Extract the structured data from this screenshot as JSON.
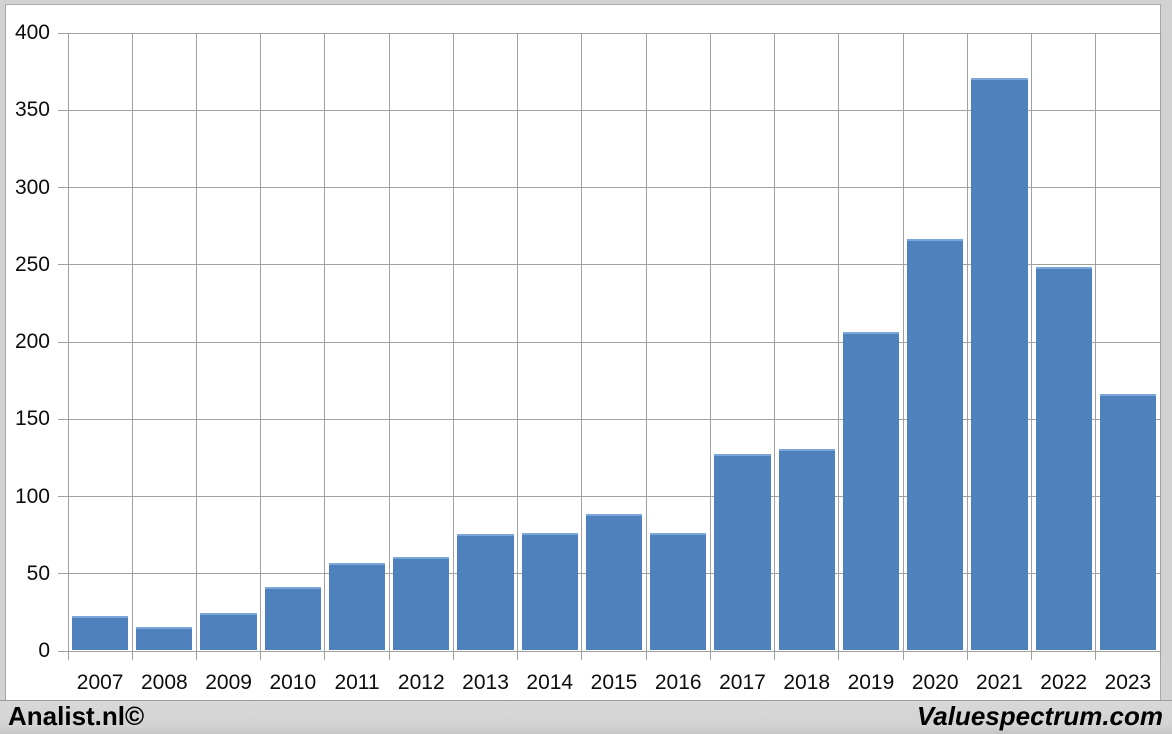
{
  "chart_data": {
    "type": "bar",
    "title": "",
    "xlabel": "",
    "ylabel": "",
    "categories": [
      "2007",
      "2008",
      "2009",
      "2010",
      "2011",
      "2012",
      "2013",
      "2014",
      "2015",
      "2016",
      "2017",
      "2018",
      "2019",
      "2020",
      "2021",
      "2022",
      "2023"
    ],
    "values": [
      22,
      15,
      24,
      41,
      56,
      60,
      75,
      76,
      88,
      76,
      127,
      130,
      206,
      266,
      370,
      248,
      166
    ],
    "ylim": [
      0,
      400
    ],
    "yticks": [
      0,
      50,
      100,
      150,
      200,
      250,
      300,
      350,
      400
    ],
    "grid": "major-horizontal-and-vertical",
    "legend_position": "none",
    "bar_color": "#4f81bd",
    "bar_top_edge_color": "#7ba6d9",
    "gridline_color": "#a0a0a0",
    "plot_background": "#ffffff"
  },
  "branding": {
    "left": "Analist.nl©",
    "right": "Valuespectrum.com"
  },
  "frame": {
    "background": "#d2d2d2",
    "footer_background": "#d3d3d3"
  }
}
